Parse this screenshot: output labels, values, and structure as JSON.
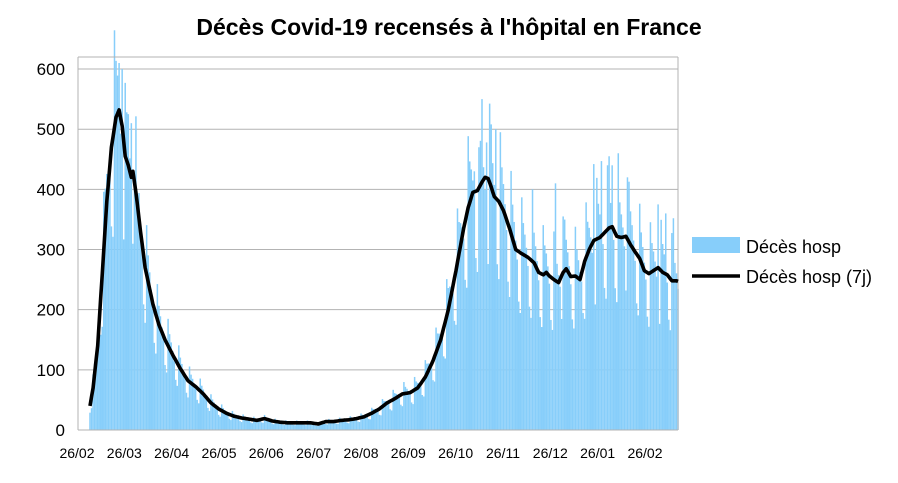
{
  "chart_data": {
    "type": "bar",
    "title": "Décès Covid-19 recensés à l'hôpital en France",
    "xlabel": "",
    "ylabel": "",
    "ylim": [
      0,
      620
    ],
    "yticks": [
      0,
      100,
      200,
      300,
      400,
      500,
      600
    ],
    "grid": "horizontal",
    "legend": "right",
    "x_start": "2020-02-26",
    "x_tick_labels": [
      "26/02",
      "26/03",
      "26/04",
      "26/05",
      "26/06",
      "26/07",
      "26/08",
      "26/09",
      "26/10",
      "26/11",
      "26/12",
      "26/01",
      "26/02"
    ],
    "colors": {
      "bars": "#87CEFA",
      "line": "#000000",
      "grid": "#b3b3b3",
      "axis": "#b3b3b3"
    },
    "smooth_anchors": [
      [
        0,
        2
      ],
      [
        5,
        6
      ],
      [
        10,
        25
      ],
      [
        13,
        70
      ],
      [
        16,
        140
      ],
      [
        19,
        260
      ],
      [
        22,
        380
      ],
      [
        25,
        470
      ],
      [
        28,
        520
      ],
      [
        30,
        532
      ],
      [
        32,
        505
      ],
      [
        34,
        455
      ],
      [
        36,
        440
      ],
      [
        38,
        420
      ],
      [
        39,
        430
      ],
      [
        41,
        395
      ],
      [
        44,
        330
      ],
      [
        47,
        270
      ],
      [
        52,
        210
      ],
      [
        56,
        175
      ],
      [
        60,
        150
      ],
      [
        65,
        125
      ],
      [
        70,
        102
      ],
      [
        75,
        82
      ],
      [
        80,
        72
      ],
      [
        85,
        60
      ],
      [
        90,
        45
      ],
      [
        95,
        35
      ],
      [
        100,
        28
      ],
      [
        105,
        23
      ],
      [
        110,
        20
      ],
      [
        115,
        18
      ],
      [
        120,
        16
      ],
      [
        125,
        19
      ],
      [
        130,
        15
      ],
      [
        135,
        13
      ],
      [
        140,
        12
      ],
      [
        145,
        12
      ],
      [
        150,
        12
      ],
      [
        155,
        12
      ],
      [
        160,
        10
      ],
      [
        165,
        14
      ],
      [
        170,
        14
      ],
      [
        175,
        16
      ],
      [
        180,
        17
      ],
      [
        185,
        19
      ],
      [
        190,
        22
      ],
      [
        195,
        28
      ],
      [
        200,
        35
      ],
      [
        205,
        45
      ],
      [
        210,
        52
      ],
      [
        215,
        60
      ],
      [
        220,
        62
      ],
      [
        225,
        70
      ],
      [
        230,
        88
      ],
      [
        235,
        115
      ],
      [
        240,
        150
      ],
      [
        245,
        200
      ],
      [
        250,
        265
      ],
      [
        255,
        335
      ],
      [
        258,
        370
      ],
      [
        261,
        395
      ],
      [
        264,
        398
      ],
      [
        267,
        412
      ],
      [
        269,
        420
      ],
      [
        271,
        418
      ],
      [
        273,
        404
      ],
      [
        275,
        388
      ],
      [
        278,
        380
      ],
      [
        281,
        365
      ],
      [
        285,
        335
      ],
      [
        289,
        300
      ],
      [
        293,
        293
      ],
      [
        297,
        287
      ],
      [
        301,
        278
      ],
      [
        304,
        262
      ],
      [
        307,
        258
      ],
      [
        309,
        262
      ],
      [
        311,
        256
      ],
      [
        314,
        250
      ],
      [
        317,
        245
      ],
      [
        320,
        262
      ],
      [
        322,
        268
      ],
      [
        325,
        255
      ],
      [
        328,
        256
      ],
      [
        331,
        250
      ],
      [
        334,
        280
      ],
      [
        337,
        300
      ],
      [
        340,
        315
      ],
      [
        344,
        320
      ],
      [
        347,
        328
      ],
      [
        350,
        336
      ],
      [
        352,
        338
      ],
      [
        355,
        322
      ],
      [
        358,
        320
      ],
      [
        361,
        322
      ],
      [
        364,
        308
      ],
      [
        367,
        296
      ],
      [
        370,
        285
      ],
      [
        373,
        265
      ],
      [
        376,
        260
      ],
      [
        379,
        265
      ],
      [
        382,
        270
      ],
      [
        385,
        262
      ],
      [
        388,
        258
      ],
      [
        391,
        248
      ],
      [
        394,
        248
      ],
      [
        397,
        245
      ]
    ],
    "daily_peaks": [
      [
        30,
        610
      ],
      [
        32,
        600
      ],
      [
        34,
        577
      ],
      [
        36,
        525
      ],
      [
        38,
        510
      ],
      [
        40,
        400
      ],
      [
        42,
        390
      ],
      [
        44,
        330
      ],
      [
        262,
        430
      ],
      [
        265,
        470
      ],
      [
        267,
        550
      ],
      [
        270,
        478
      ],
      [
        273,
        508
      ],
      [
        276,
        500
      ],
      [
        300,
        400
      ],
      [
        315,
        410
      ],
      [
        320,
        355
      ],
      [
        340,
        442
      ],
      [
        345,
        447
      ],
      [
        350,
        455
      ],
      [
        352,
        440
      ],
      [
        356,
        460
      ],
      [
        362,
        420
      ],
      [
        382,
        375
      ],
      [
        387,
        360
      ],
      [
        392,
        352
      ]
    ],
    "series": [
      {
        "name": "Décès hosp",
        "type": "bar"
      },
      {
        "name": "Décès hosp (7j)",
        "type": "line"
      }
    ]
  }
}
